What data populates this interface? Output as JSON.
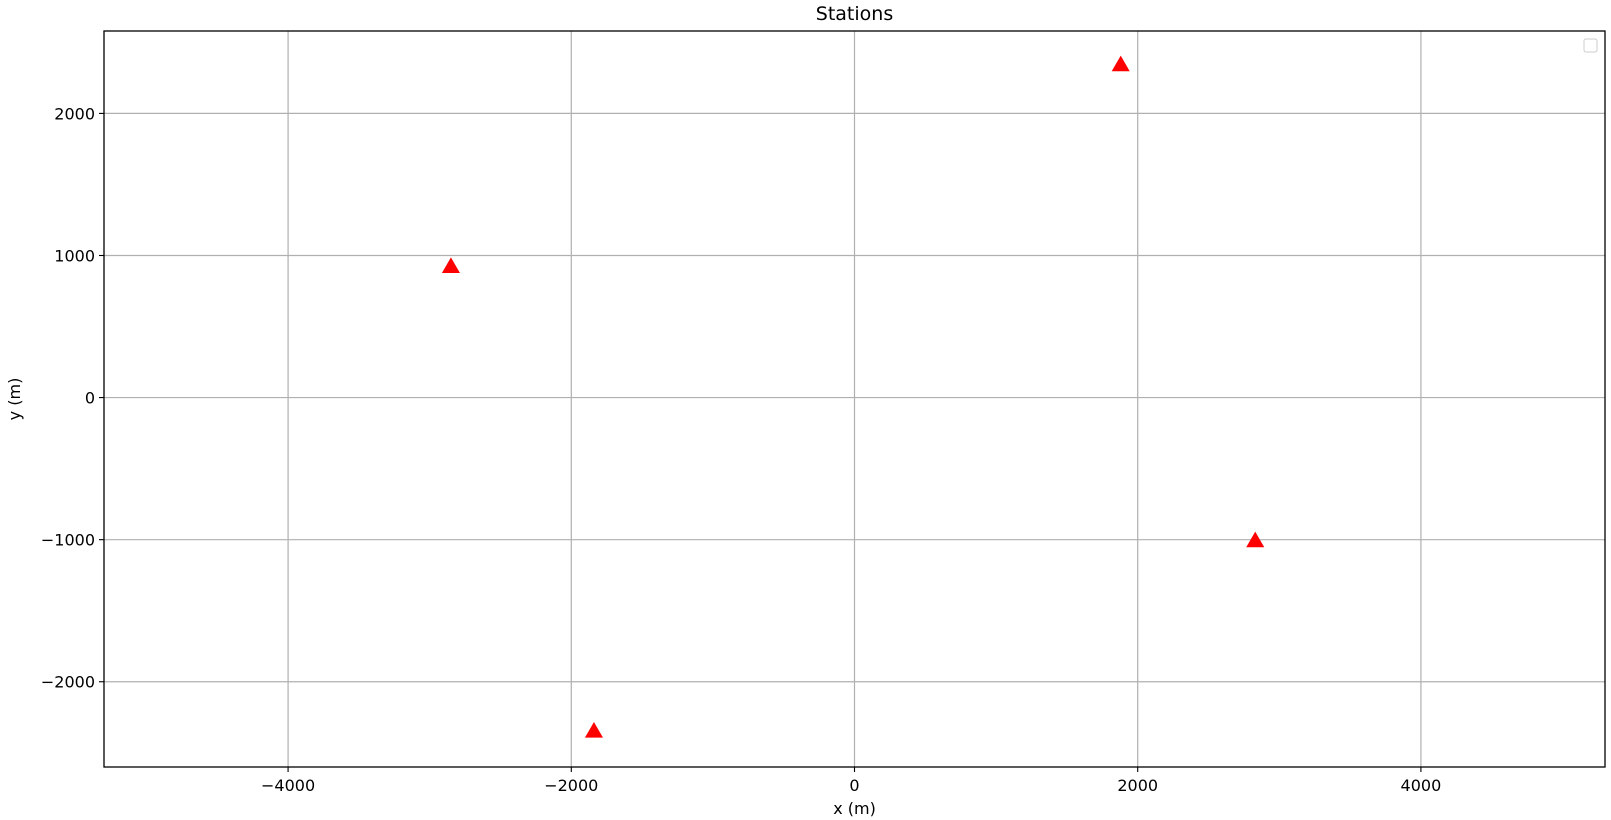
{
  "chart_data": {
    "type": "scatter",
    "title": "Stations",
    "xlabel": "x (m)",
    "ylabel": "y (m)",
    "xlim": [
      -5300,
      5300
    ],
    "ylim": [
      -2600,
      2580
    ],
    "xticks": [
      -4000,
      -2000,
      0,
      2000,
      4000
    ],
    "yticks": [
      -2000,
      -1000,
      0,
      1000,
      2000
    ],
    "xtick_labels": [
      "−4000",
      "−2000",
      "0",
      "2000",
      "4000"
    ],
    "ytick_labels": [
      "−2000",
      "−1000",
      "0",
      "1000",
      "2000"
    ],
    "grid": true,
    "legend": "top-right",
    "marker": "triangle",
    "marker_color": "#ff0000",
    "series": [
      {
        "x": [
          -2850,
          -1840,
          1880,
          2830
        ],
        "y": [
          920,
          -2350,
          2340,
          -1010
        ]
      }
    ]
  }
}
